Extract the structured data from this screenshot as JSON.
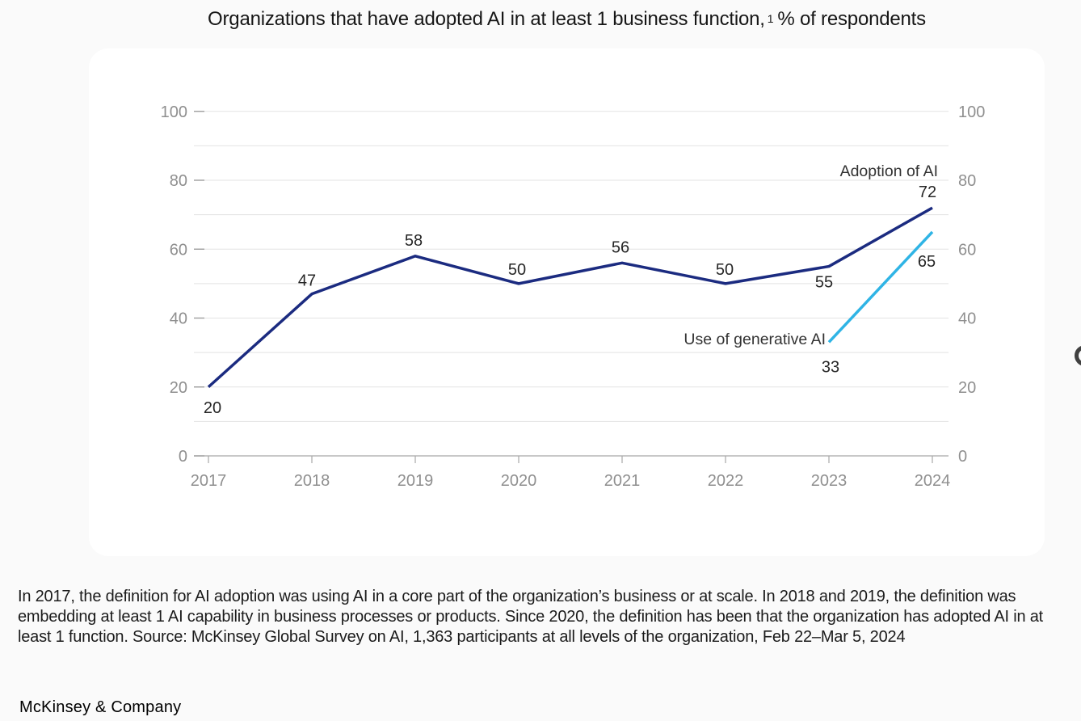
{
  "page": {
    "title": {
      "part1": "Organizations that have adopted AI in at least 1 business function,",
      "footnote_marker": "1",
      "part2": "% of respondents"
    },
    "footnote": "In 2017, the definition for AI adoption was using AI in a core part of the organization’s business or at scale. In 2018 and 2019, the definition was embedding at least 1 AI capability in business processes or products. Since 2020, the definition has been that the organization has adopted AI in at least 1 function. Source: McKinsey Global Survey on AI, 1,363 participants at all levels of the organization, Feb 22–Mar 5, 2024",
    "brand": "McKinsey & Company"
  },
  "chart_data": {
    "type": "line",
    "title": "Organizations that have adopted AI in at least 1 business function, % of respondents",
    "categories": [
      "2017",
      "2018",
      "2019",
      "2020",
      "2021",
      "2022",
      "2023",
      "2024"
    ],
    "series": [
      {
        "name": "Adoption of AI",
        "color": "#1b2b80",
        "start_category": "2017",
        "values": [
          20,
          47,
          58,
          50,
          56,
          50,
          55,
          72
        ]
      },
      {
        "name": "Use of generative AI",
        "color": "#2fb4e5",
        "start_category": "2023",
        "values": [
          33,
          65
        ]
      }
    ],
    "ylim": [
      0,
      100
    ],
    "yticks": [
      0,
      20,
      40,
      60,
      80,
      100
    ],
    "grid_step": 10,
    "grid": "horizontal",
    "y_axis_labels": "both-sides",
    "legend": "inline-end-labels"
  },
  "colors": {
    "page_background": "#fafafa",
    "card_background": "#ffffff",
    "gridline": "#e3e3e3",
    "axis_line": "#a8a8a8",
    "tick": "#9e9e9e",
    "axis_text": "#8f8f8f",
    "data_label_text": "#262626",
    "series_label_text": "#333333",
    "adoption_line": "#1b2b80",
    "genai_line": "#2fb4e5"
  }
}
